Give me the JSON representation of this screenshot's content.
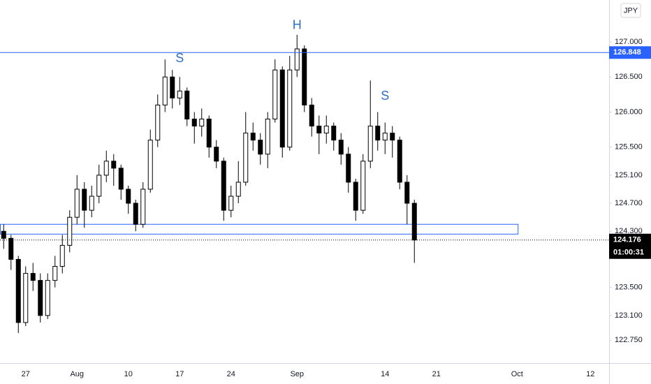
{
  "chart_data": {
    "type": "candlestick",
    "currency": "JPY",
    "categories": [
      null,
      null,
      null,
      "27",
      null,
      null,
      null,
      null,
      null,
      null,
      "Aug",
      null,
      null,
      null,
      null,
      null,
      null,
      "10",
      null,
      null,
      null,
      null,
      null,
      null,
      "17",
      null,
      null,
      null,
      null,
      null,
      null,
      "24",
      null,
      null,
      null,
      null,
      null,
      null,
      null,
      null,
      "Sep",
      null,
      null,
      null,
      null,
      null,
      null,
      null,
      null,
      null,
      null,
      null,
      "14",
      null,
      null,
      null,
      null,
      null,
      null,
      "21",
      null,
      null,
      null,
      null,
      null,
      null,
      null,
      null,
      null,
      null,
      "Oct",
      null,
      null,
      null,
      null,
      null,
      null,
      null,
      null,
      null,
      "12",
      null,
      null
    ],
    "open": [
      124.3,
      124.2,
      123.9,
      123.0,
      123.7,
      123.6,
      123.1,
      123.6,
      123.8,
      124.1,
      124.5,
      124.9,
      124.6,
      124.8,
      125.1,
      125.3,
      125.2,
      124.9,
      124.7,
      124.4,
      124.9,
      125.6,
      126.1,
      126.5,
      126.2,
      126.3,
      125.9,
      125.8,
      125.9,
      125.5,
      125.3,
      124.6,
      124.8,
      125.0,
      125.7,
      125.6,
      125.4,
      125.9,
      126.6,
      125.5,
      126.6,
      126.9,
      126.1,
      125.8,
      125.7,
      125.8,
      125.6,
      125.4,
      125.0,
      124.6,
      125.3,
      125.8,
      125.6,
      125.7,
      125.6,
      125.0,
      124.7,
      null,
      null,
      null,
      null,
      null,
      null,
      null,
      null,
      null,
      null,
      null,
      null,
      null,
      null,
      null,
      null,
      null,
      null,
      null,
      null,
      null,
      null,
      null,
      null,
      null,
      null
    ],
    "high": [
      124.4,
      124.25,
      123.95,
      123.8,
      123.85,
      123.7,
      123.7,
      123.95,
      124.25,
      124.6,
      125.1,
      125.0,
      124.95,
      125.25,
      125.45,
      125.4,
      125.25,
      124.95,
      124.75,
      125.0,
      125.75,
      126.25,
      126.75,
      126.6,
      126.5,
      126.35,
      126.0,
      126.05,
      125.95,
      125.6,
      125.35,
      124.95,
      125.3,
      126.0,
      125.85,
      125.7,
      126.0,
      126.75,
      126.65,
      126.8,
      127.1,
      126.95,
      126.2,
      125.95,
      125.95,
      125.85,
      125.7,
      125.5,
      125.05,
      125.4,
      126.45,
      126.0,
      125.85,
      125.8,
      125.65,
      125.1,
      124.75,
      null,
      null,
      null,
      null,
      null,
      null,
      null,
      null,
      null,
      null,
      null,
      null,
      null,
      null,
      null,
      null,
      null,
      null,
      null,
      null,
      null,
      null,
      null,
      null,
      null,
      null
    ],
    "low": [
      124.05,
      123.75,
      122.85,
      122.95,
      123.45,
      123.0,
      123.05,
      123.5,
      123.7,
      124.0,
      124.4,
      124.35,
      124.5,
      124.7,
      125.0,
      124.95,
      124.75,
      124.55,
      124.3,
      124.35,
      124.85,
      125.5,
      126.0,
      126.05,
      126.1,
      125.8,
      125.55,
      125.65,
      125.35,
      125.2,
      124.45,
      124.5,
      124.7,
      124.95,
      125.45,
      125.25,
      125.2,
      125.85,
      125.35,
      125.45,
      126.5,
      126.0,
      125.65,
      125.4,
      125.55,
      125.45,
      125.25,
      124.85,
      124.45,
      124.55,
      125.2,
      125.45,
      125.4,
      125.35,
      124.9,
      124.4,
      123.85,
      null,
      null,
      null,
      null,
      null,
      null,
      null,
      null,
      null,
      null,
      null,
      null,
      null,
      null,
      null,
      null,
      null,
      null,
      null,
      null,
      null,
      null,
      null,
      null,
      null,
      null
    ],
    "close": [
      124.2,
      123.9,
      123.0,
      123.7,
      123.6,
      123.1,
      123.6,
      123.8,
      124.1,
      124.5,
      124.9,
      124.6,
      124.8,
      125.1,
      125.3,
      125.2,
      124.9,
      124.7,
      124.4,
      124.9,
      125.6,
      126.1,
      126.5,
      126.2,
      126.3,
      125.9,
      125.8,
      125.9,
      125.5,
      125.3,
      124.6,
      124.8,
      125.0,
      125.7,
      125.6,
      125.4,
      125.9,
      126.6,
      125.5,
      126.6,
      126.9,
      126.1,
      125.8,
      125.7,
      125.8,
      125.6,
      125.4,
      125.0,
      124.6,
      125.3,
      125.8,
      125.6,
      125.7,
      125.6,
      125.0,
      124.7,
      124.176,
      null,
      null,
      null,
      null,
      null,
      null,
      null,
      null,
      null,
      null,
      null,
      null,
      null,
      null,
      null,
      null,
      null,
      null,
      null,
      null,
      null,
      null,
      null,
      null,
      null,
      null
    ],
    "up_color": "#ffffff",
    "down_color": "#000000",
    "wick_color": "#000000",
    "ylim": [
      122.422,
      127.597
    ],
    "yticks": [
      {
        "value": 127,
        "label": "127.000"
      },
      {
        "value": 126.5,
        "label": "126.500"
      },
      {
        "value": 126,
        "label": "126.000"
      },
      {
        "value": 125.5,
        "label": "125.500"
      },
      {
        "value": 125.1,
        "label": "125.100"
      },
      {
        "value": 124.7,
        "label": "124.700"
      },
      {
        "value": 124.3,
        "label": "124.300"
      },
      {
        "value": 123.5,
        "label": "123.500"
      },
      {
        "value": 123.1,
        "label": "123.100"
      },
      {
        "value": 122.75,
        "label": "122.750"
      }
    ],
    "resistance": {
      "value": 126.848,
      "label": "126.848",
      "color": "#2962ff"
    },
    "zone": {
      "low": 124.26,
      "high": 124.4,
      "color": "#2962ff"
    },
    "last_price": {
      "value": 124.176,
      "label": "124.176",
      "countdown": "01:00:31"
    },
    "annotations": [
      {
        "text": "S",
        "index": 24,
        "price": 126.76
      },
      {
        "text": "H",
        "index": 40,
        "price": 127.23
      },
      {
        "text": "S",
        "index": 52,
        "price": 126.22
      }
    ],
    "annotation_color": "#2f6fc4"
  }
}
